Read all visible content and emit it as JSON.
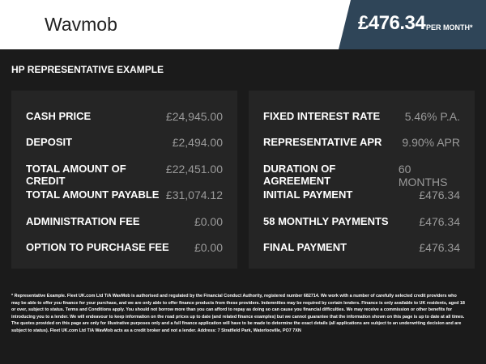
{
  "header": {
    "logo": "Wavmob",
    "price": "£476.34",
    "per_month": "PER MONTH*"
  },
  "section_title": "HP REPRESENTATIVE EXAMPLE",
  "left": [
    {
      "label": "CASH PRICE",
      "value": "£24,945.00"
    },
    {
      "label": "DEPOSIT",
      "value": "£2,494.00"
    },
    {
      "label": "TOTAL AMOUNT OF CREDIT",
      "value": "£22,451.00"
    },
    {
      "label": "TOTAL AMOUNT PAYABLE",
      "value": "£31,074.12"
    },
    {
      "label": "ADMINISTRATION FEE",
      "value": "£0.00"
    },
    {
      "label": "OPTION TO PURCHASE FEE",
      "value": "£0.00"
    }
  ],
  "right": [
    {
      "label": "FIXED INTEREST RATE",
      "value": "5.46% P.A."
    },
    {
      "label": "REPRESENTATIVE APR",
      "value": "9.90% APR"
    },
    {
      "label": "DURATION OF AGREEMENT",
      "value": "60 MONTHS"
    },
    {
      "label": "INITIAL PAYMENT",
      "value": "£476.34"
    },
    {
      "label": "58 MONTHLY PAYMENTS",
      "value": "£476.34"
    },
    {
      "label": "FINAL PAYMENT",
      "value": "£476.34"
    }
  ],
  "footnote": "* Representative Example. Fleet UK.com Ltd T/A WavMob is authorised and regulated by the Financial Conduct Authority, registered number 682714. We work with a number of carefully selected credit providers who may be able to offer you finance for your purchase, and we are only able to offer finance products from these providers. Indemnities may be required by certain lenders. Finance is only available to UK residents, aged 18 or over, subject to status. Terms and Conditions apply. You should not borrow more than you can afford to repay as doing so can cause you financial difficulties. We may receive a commission or other benefits for introducing you to a lender. We will endeavour to keep information on the road prices up to date (and related finance examples) but we cannot guarantee that the information shown on this page is up to date at all times. The quotes provided on this page are only for illustrative purposes only and a full finance application will have to be made to determine the exact details (all applications are subject to an underwriting decision and are subject to status). Fleet UK.com Ltd T/A WavMob acts as a credit broker and not a lender. Address: 7 Stratfield Park, Waterlooville, PO7 7XN",
  "colors": {
    "accent": "#2f4558",
    "background": "#1b1b1b",
    "panel": "#252525"
  }
}
